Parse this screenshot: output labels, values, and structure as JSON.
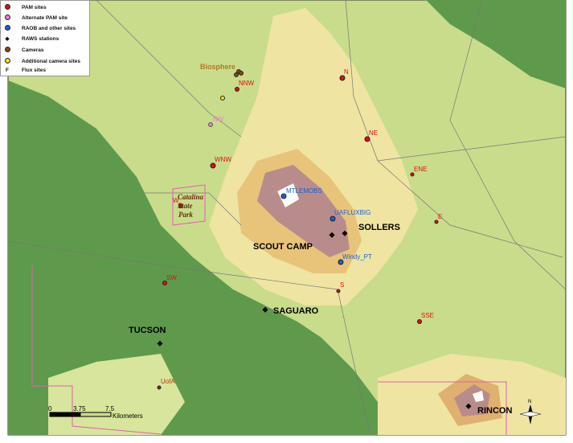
{
  "legend": {
    "items": [
      {
        "label": "PAM sites",
        "symbol": "red-dot-icon",
        "color": "#e01010"
      },
      {
        "label": "Alternate PAM site",
        "symbol": "pink-dot-icon",
        "color": "#f07ad0"
      },
      {
        "label": "RAOB and other sites",
        "symbol": "blue-dot-icon",
        "color": "#1a5fd0"
      },
      {
        "label": "RAWS stations",
        "symbol": "black-diamond-icon",
        "color": "#000000"
      },
      {
        "label": "Cameras",
        "symbol": "brown-dot-icon",
        "color": "#8a4a10"
      },
      {
        "label": "Additional camera sites",
        "symbol": "yellow-dot-icon",
        "color": "#f5e010"
      },
      {
        "label": "Flux sites",
        "symbol": "F"
      }
    ]
  },
  "pam_sites": [
    "N",
    "NNW",
    "NE",
    "WNW",
    "ENE",
    "W",
    "E",
    "S",
    "SSE",
    "SW",
    "UofA"
  ],
  "alternate_sites": [
    "NW"
  ],
  "raob_sites": [
    "MTLEMOBS",
    "UAFLUXBIG",
    "Windy_PT"
  ],
  "raws_stations": [
    "SCOUT CAMP",
    "SOLLERS",
    "SAGUARO",
    "TUCSON",
    "RINCON"
  ],
  "cameras": {
    "label": "Biosphere"
  },
  "park_label": [
    "Catalina",
    "State",
    "Park"
  ],
  "scale_bar": {
    "ticks": [
      "0",
      "3.75",
      "7.5"
    ],
    "unit": "Kilometers"
  },
  "north_arrow": "N",
  "colors": {
    "urban": "#5e9a4a",
    "low": "#c9dc8c",
    "mid": "#efe4a0",
    "high": "#e0b070",
    "peak": "#b88a8a",
    "snow": "#ffffff"
  }
}
